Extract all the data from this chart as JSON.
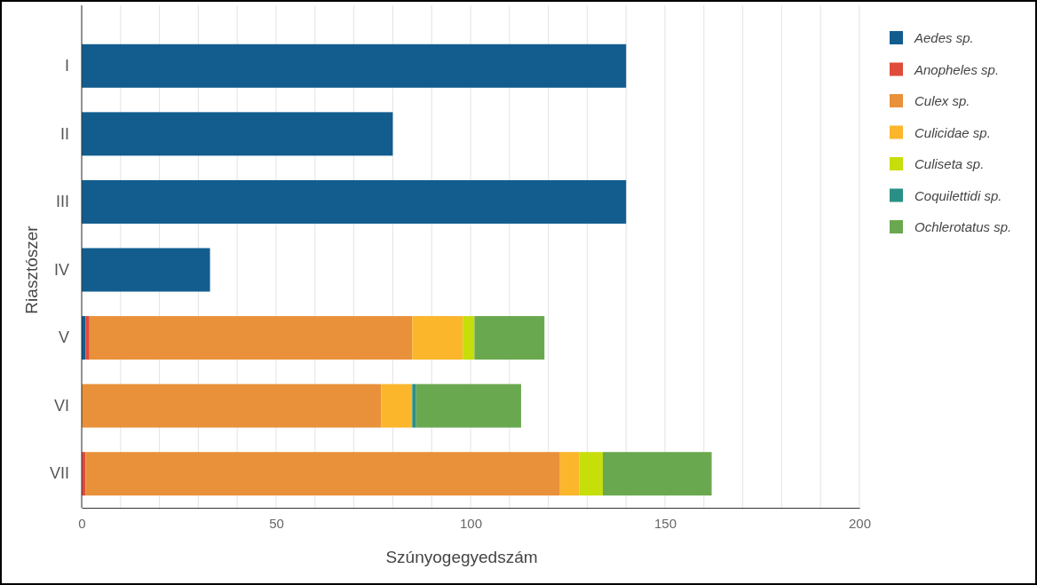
{
  "chart_data": {
    "type": "bar",
    "orientation": "horizontal",
    "stacked": true,
    "xlabel": "Szúnyogegyedszám",
    "ylabel": "Riasztószer",
    "categories": [
      "I",
      "II",
      "III",
      "IV",
      "V",
      "VI",
      "VII"
    ],
    "series": [
      {
        "name": "Aedes sp.",
        "color": "#125d8e",
        "values": [
          140,
          80,
          140,
          33,
          1,
          0,
          0
        ]
      },
      {
        "name": "Anopheles sp.",
        "color": "#e04b3a",
        "values": [
          0,
          0,
          0,
          0,
          1,
          0,
          1
        ]
      },
      {
        "name": "Culex sp.",
        "color": "#e8913a",
        "values": [
          0,
          0,
          0,
          0,
          83,
          77,
          122
        ]
      },
      {
        "name": "Culicidae sp.",
        "color": "#fbb62c",
        "values": [
          0,
          0,
          0,
          0,
          13,
          8,
          5
        ]
      },
      {
        "name": "Culiseta sp.",
        "color": "#c6de0a",
        "values": [
          0,
          0,
          0,
          0,
          3,
          0,
          6
        ]
      },
      {
        "name": "Coquilettidi sp.",
        "color": "#2a8f86",
        "values": [
          0,
          0,
          0,
          0,
          0,
          1,
          0
        ]
      },
      {
        "name": "Ochlerotatus sp.",
        "color": "#6aa84f",
        "values": [
          0,
          0,
          0,
          0,
          18,
          27,
          28
        ]
      }
    ],
    "xlim": [
      0,
      200
    ],
    "xticks": [
      0,
      {
        "value": 10,
        "label": null
      },
      {
        "value": 20,
        "label": null
      },
      {
        "value": 30,
        "label": null
      },
      {
        "value": 40,
        "label": null
      },
      50,
      {
        "value": 60,
        "label": null
      },
      {
        "value": 70,
        "label": null
      },
      {
        "value": 80,
        "label": null
      },
      {
        "value": 90,
        "label": null
      },
      100,
      {
        "value": 110,
        "label": null
      },
      {
        "value": 120,
        "label": null
      },
      {
        "value": 130,
        "label": null
      },
      {
        "value": 140,
        "label": null
      },
      150,
      {
        "value": 160,
        "label": null
      },
      {
        "value": 170,
        "label": null
      },
      {
        "value": 180,
        "label": null
      },
      {
        "value": 190,
        "label": null
      },
      200
    ],
    "grid": "x",
    "legend": "right"
  }
}
